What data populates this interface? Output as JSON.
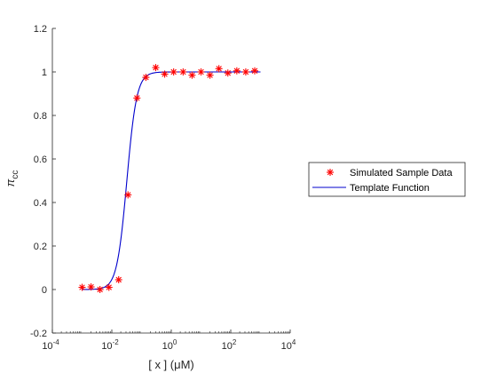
{
  "chart_data": {
    "type": "scatter",
    "xscale": "log",
    "xlim": [
      0.0001,
      10000
    ],
    "ylim": [
      -0.2,
      1.2
    ],
    "grid": false,
    "legend_position": "outside-right",
    "xlabel": "[ x ] (μM)",
    "ylabel": "π_cc",
    "x_ticks": [
      {
        "value": 0.0001,
        "base": "10",
        "exp": "-4"
      },
      {
        "value": 0.01,
        "base": "10",
        "exp": "-2"
      },
      {
        "value": 1,
        "base": "10",
        "exp": "0"
      },
      {
        "value": 100,
        "base": "10",
        "exp": "2"
      },
      {
        "value": 10000,
        "base": "10",
        "exp": "4"
      }
    ],
    "y_ticks": [
      {
        "value": -0.2,
        "label": "-0.2"
      },
      {
        "value": 0,
        "label": "0"
      },
      {
        "value": 0.2,
        "label": "0.2"
      },
      {
        "value": 0.4,
        "label": "0.4"
      },
      {
        "value": 0.6,
        "label": "0.6"
      },
      {
        "value": 0.8,
        "label": "0.8"
      },
      {
        "value": 1,
        "label": "1"
      },
      {
        "value": 1.2,
        "label": "1.2"
      }
    ],
    "series": [
      {
        "name": "Simulated Sample Data",
        "kind": "markers",
        "marker": "asterisk",
        "color": "#ff0000",
        "points": [
          [
            0.001,
            0.01
          ],
          [
            0.002,
            0.012
          ],
          [
            0.004,
            0.0
          ],
          [
            0.008,
            0.01
          ],
          [
            0.017,
            0.045
          ],
          [
            0.035,
            0.435
          ],
          [
            0.07,
            0.88
          ],
          [
            0.14,
            0.975
          ],
          [
            0.3,
            1.02
          ],
          [
            0.6,
            0.99
          ],
          [
            1.2,
            1.0
          ],
          [
            2.5,
            1.0
          ],
          [
            5,
            0.985
          ],
          [
            10,
            1.0
          ],
          [
            20,
            0.985
          ],
          [
            40,
            1.015
          ],
          [
            80,
            0.995
          ],
          [
            160,
            1.005
          ],
          [
            320,
            1.0
          ],
          [
            640,
            1.005
          ]
        ]
      },
      {
        "name": "Template Function",
        "kind": "line",
        "color": "#0000cd",
        "model": {
          "top": 1.0,
          "ec50": 0.032,
          "hill": 2.6
        },
        "x_range": [
          0.001,
          1000
        ]
      }
    ]
  }
}
